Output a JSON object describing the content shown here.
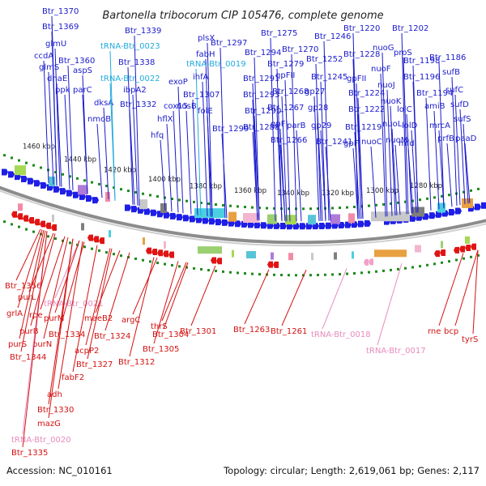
{
  "header": {
    "title": "Bartonella tribocorum CIP 105476, complete genome"
  },
  "footer": {
    "accession": "Accession: NC_010161",
    "summary": "Topology: circular; Length: 2,619,061 bp; Genes: 2,117"
  },
  "colors": {
    "forward_label": "#1a1acc",
    "reverse_label": "#d41111",
    "trna_forward_label": "#22aadd",
    "trna_reverse_label": "#e88bbd",
    "forward_gene": "#1e1ee6",
    "reverse_gene": "#e11414",
    "backbone": "#8c8c8c",
    "tick": "#1d8a1d"
  },
  "scale_labels": [
    "1460 kbp",
    "1440 kbp",
    "1420 kbp",
    "1400 kbp",
    "1380 kbp",
    "1360 kbp",
    "1340 kbp",
    "1320 kbp",
    "1300 kbp",
    "1280 kbp"
  ],
  "forward_genes": [
    "Btr_1370",
    "Btr_1369",
    "glmU",
    "ccdA",
    "glmS",
    "Btr_1360",
    "aspS",
    "dnaE",
    "ppk",
    "parC",
    "dksA",
    "nmoB",
    "Btr_1339",
    "tRNA-Btr_0023",
    "Btr_1338",
    "tRNA-Btr_0022",
    "ibpA2",
    "Btr_1332",
    "exoP",
    "cox15",
    "hflX",
    "hfq",
    "plsX",
    "Btr_1297",
    "fabH",
    "tRNA-Btr_0019",
    "ihfA",
    "Btr_1307",
    "nusB",
    "folE",
    "Btr_1299",
    "Btr_1294",
    "Btr_1291",
    "Btr_1293",
    "Btr_1290",
    "Btr_1288",
    "Btr_1275",
    "Btr_1279",
    "Btr_1270",
    "gpFII",
    "Btr_1268",
    "Btr_1267",
    "gpFI",
    "parB",
    "Btr_1266",
    "Btr_1246",
    "Btr_1252",
    "Btr_1245",
    "gp27",
    "gp28",
    "gp29",
    "Btr_1241",
    "Btr_1220",
    "Btr_1228",
    "gpFII",
    "Btr_1224",
    "Btr_1222",
    "Btr_1219",
    "gpFI",
    "Btr_1202",
    "nuoG",
    "proS",
    "nuoF",
    "nuoJ",
    "nuoK",
    "nuoL",
    "nuoM",
    "nuoC",
    "Btr_1198",
    "Btr_1196",
    "Btr_1194",
    "lolC",
    "lolD",
    "mfd",
    "Btr_1186",
    "sufB",
    "sufC",
    "amiB",
    "sufD",
    "mrcA",
    "sufS",
    "prfB",
    "paaD"
  ],
  "reverse_genes": [
    "Btr_1356",
    "purL",
    "tRNA-Btr_0021",
    "grlA",
    "rpe",
    "purM",
    "purB",
    "purS",
    "purN",
    "Btr_1344",
    "Btr_1334",
    "maeB2",
    "Btr_1324",
    "acpP2",
    "Btr_1327",
    "fabF2",
    "adh",
    "Btr_1330",
    "mazG",
    "tRNA-Btr_0020",
    "Btr_1335",
    "argC",
    "Btr_1312",
    "thrS",
    "Btr_1304",
    "Btr_1305",
    "Btr_1301",
    "Btr_1263",
    "Btr_1261",
    "tRNA-Btr_0018",
    "tRNA-Btr_0017",
    "rne",
    "bcp",
    "tyrS"
  ]
}
